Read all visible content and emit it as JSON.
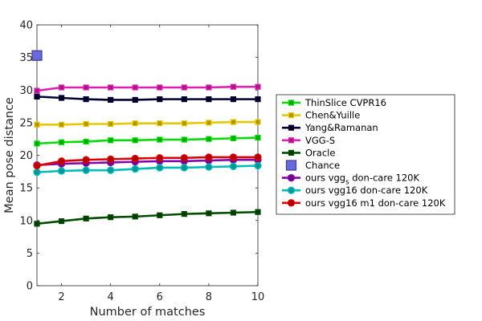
{
  "chart_data": {
    "type": "line",
    "xlabel": "Number of matches",
    "ylabel": "Mean pose distance",
    "xlim": [
      1,
      10
    ],
    "ylim": [
      0,
      40
    ],
    "xticks": [
      "2",
      "4",
      "6",
      "8",
      "10"
    ],
    "yticks": [
      "0",
      "5",
      "10",
      "15",
      "20",
      "25",
      "30",
      "35",
      "40"
    ],
    "grid": false,
    "legend_position": "outside-right",
    "x": [
      1,
      2,
      3,
      4,
      5,
      6,
      7,
      8,
      9,
      10
    ],
    "series": [
      {
        "name": "ThinSlice CVPR16",
        "color": "#00dd00",
        "marker": "square",
        "values": [
          21.8,
          22.0,
          22.1,
          22.3,
          22.3,
          22.4,
          22.4,
          22.5,
          22.6,
          22.7
        ]
      },
      {
        "name": "Chen&Yuille",
        "color": "#e6c800",
        "marker": "square",
        "values": [
          24.7,
          24.7,
          24.8,
          24.8,
          24.9,
          24.9,
          24.9,
          25.0,
          25.1,
          25.1
        ]
      },
      {
        "name": "Yang&Ramanan",
        "color": "#000033",
        "marker": "square",
        "values": [
          29.0,
          28.8,
          28.6,
          28.5,
          28.5,
          28.6,
          28.6,
          28.6,
          28.6,
          28.6
        ]
      },
      {
        "name": "VGG-S",
        "color": "#e020b0",
        "marker": "square",
        "values": [
          29.9,
          30.4,
          30.4,
          30.4,
          30.4,
          30.4,
          30.4,
          30.4,
          30.5,
          30.5
        ]
      },
      {
        "name": "Oracle",
        "color": "#004d00",
        "marker": "square",
        "values": [
          9.5,
          9.9,
          10.3,
          10.5,
          10.6,
          10.8,
          11.0,
          11.1,
          11.2,
          11.3
        ]
      },
      {
        "name": "Chance",
        "color": "#6a6ae0",
        "marker": "big-square",
        "values": [
          35.3,
          null,
          null,
          null,
          null,
          null,
          null,
          null,
          null,
          null
        ]
      },
      {
        "name": "ours vgg",
        "name_sub": "s",
        "name_rest": " don-care 120K",
        "color": "#8800aa",
        "marker": "circle",
        "values": [
          18.5,
          18.7,
          18.8,
          18.9,
          19.0,
          19.1,
          19.1,
          19.2,
          19.3,
          19.3
        ]
      },
      {
        "name": "ours vgg16 don-care 120K",
        "color": "#00bbbb",
        "marker": "circle",
        "values": [
          17.4,
          17.6,
          17.7,
          17.7,
          17.9,
          18.1,
          18.1,
          18.2,
          18.3,
          18.4
        ]
      },
      {
        "name": "ours vgg16 m1 don-care 120K",
        "color": "#dd0000",
        "marker": "circle",
        "values": [
          18.4,
          19.1,
          19.3,
          19.4,
          19.5,
          19.6,
          19.6,
          19.7,
          19.7,
          19.7
        ]
      }
    ]
  }
}
